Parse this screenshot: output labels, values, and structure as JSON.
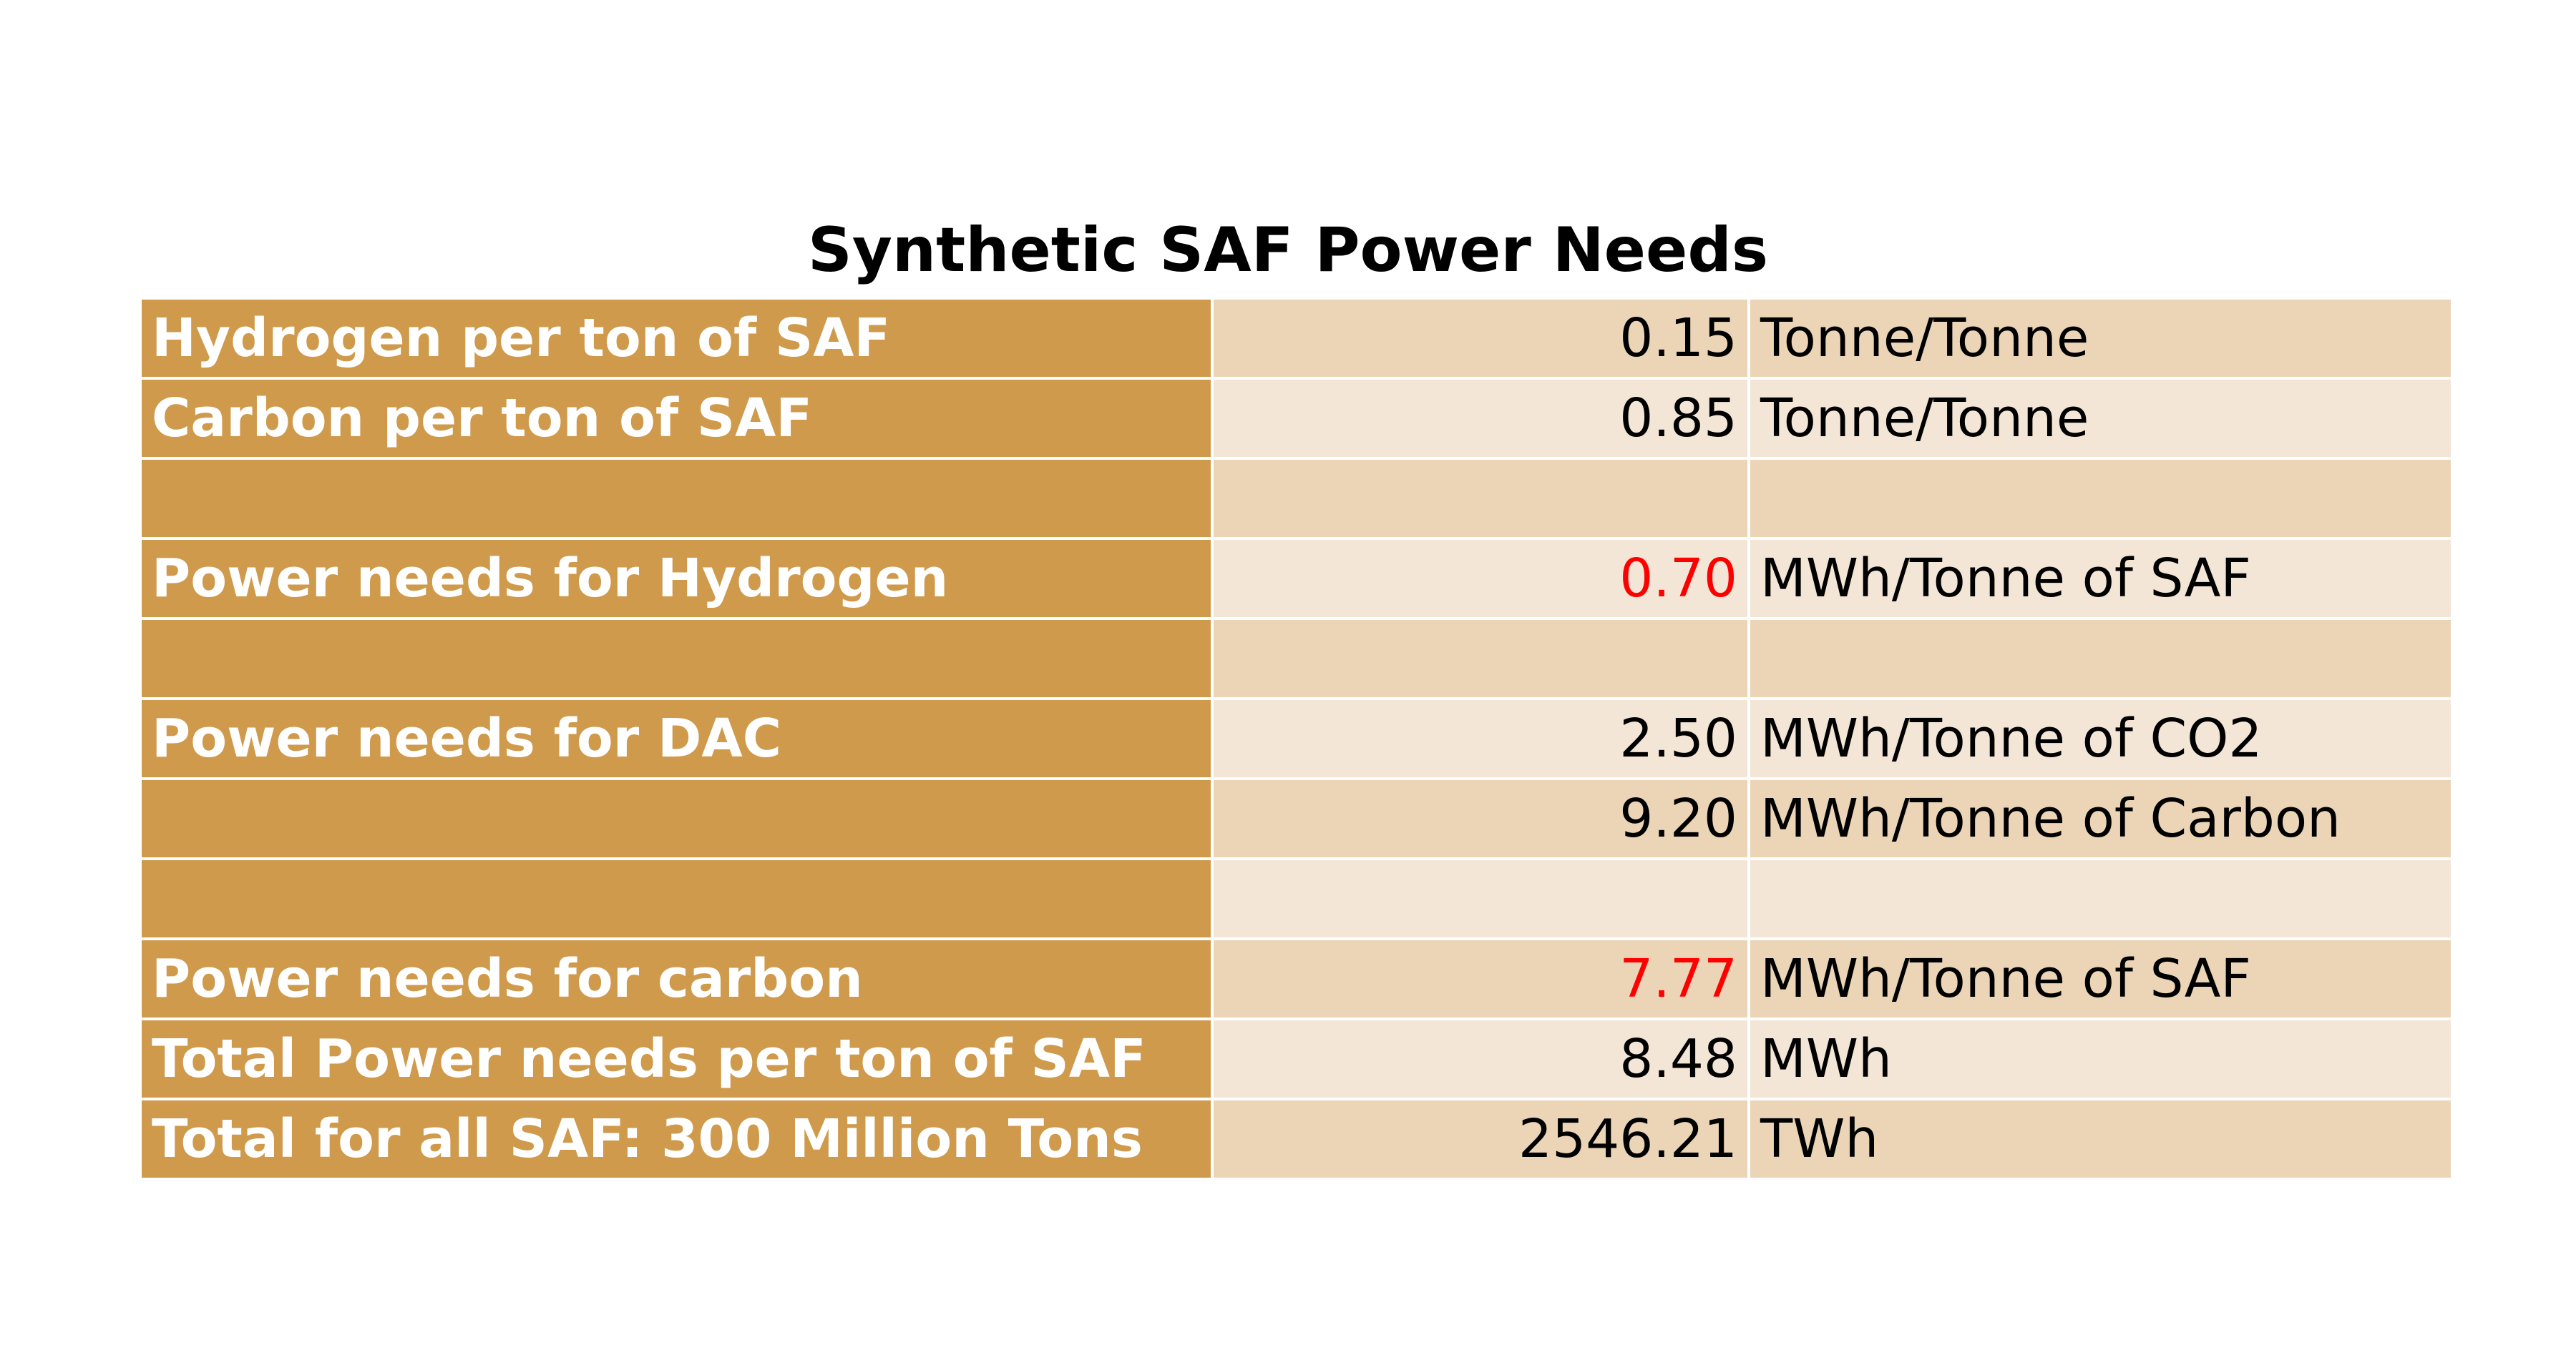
{
  "title": "Synthetic SAF Power Needs",
  "table": {
    "rows": [
      {
        "label": "Hydrogen per ton of SAF",
        "value": "0.15",
        "unit": "Tonne/Tonne"
      },
      {
        "label": "Carbon per ton of SAF",
        "value": "0.85",
        "unit": "Tonne/Tonne"
      },
      {},
      {
        "label": "Power needs for Hydrogen",
        "value": "0.70",
        "unit": "MWh/Tonne of SAF",
        "value_color": "#ff0000"
      },
      {},
      {
        "label": "Power needs for DAC",
        "value": "2.50",
        "unit": "MWh/Tonne of CO2"
      },
      {
        "value": "9.20",
        "unit": "MWh/Tonne of Carbon"
      },
      {},
      {
        "label": "Power needs for carbon",
        "value": "7.77",
        "unit": "MWh/Tonne of SAF",
        "value_color": "#ff0000"
      },
      {
        "label": "Total Power needs per ton of SAF",
        "value": "8.48",
        "unit": "MWh"
      },
      {
        "label": "Total for all SAF: 300 Million Tons",
        "value": "2546.21",
        "unit": "TWh"
      }
    ]
  }
}
